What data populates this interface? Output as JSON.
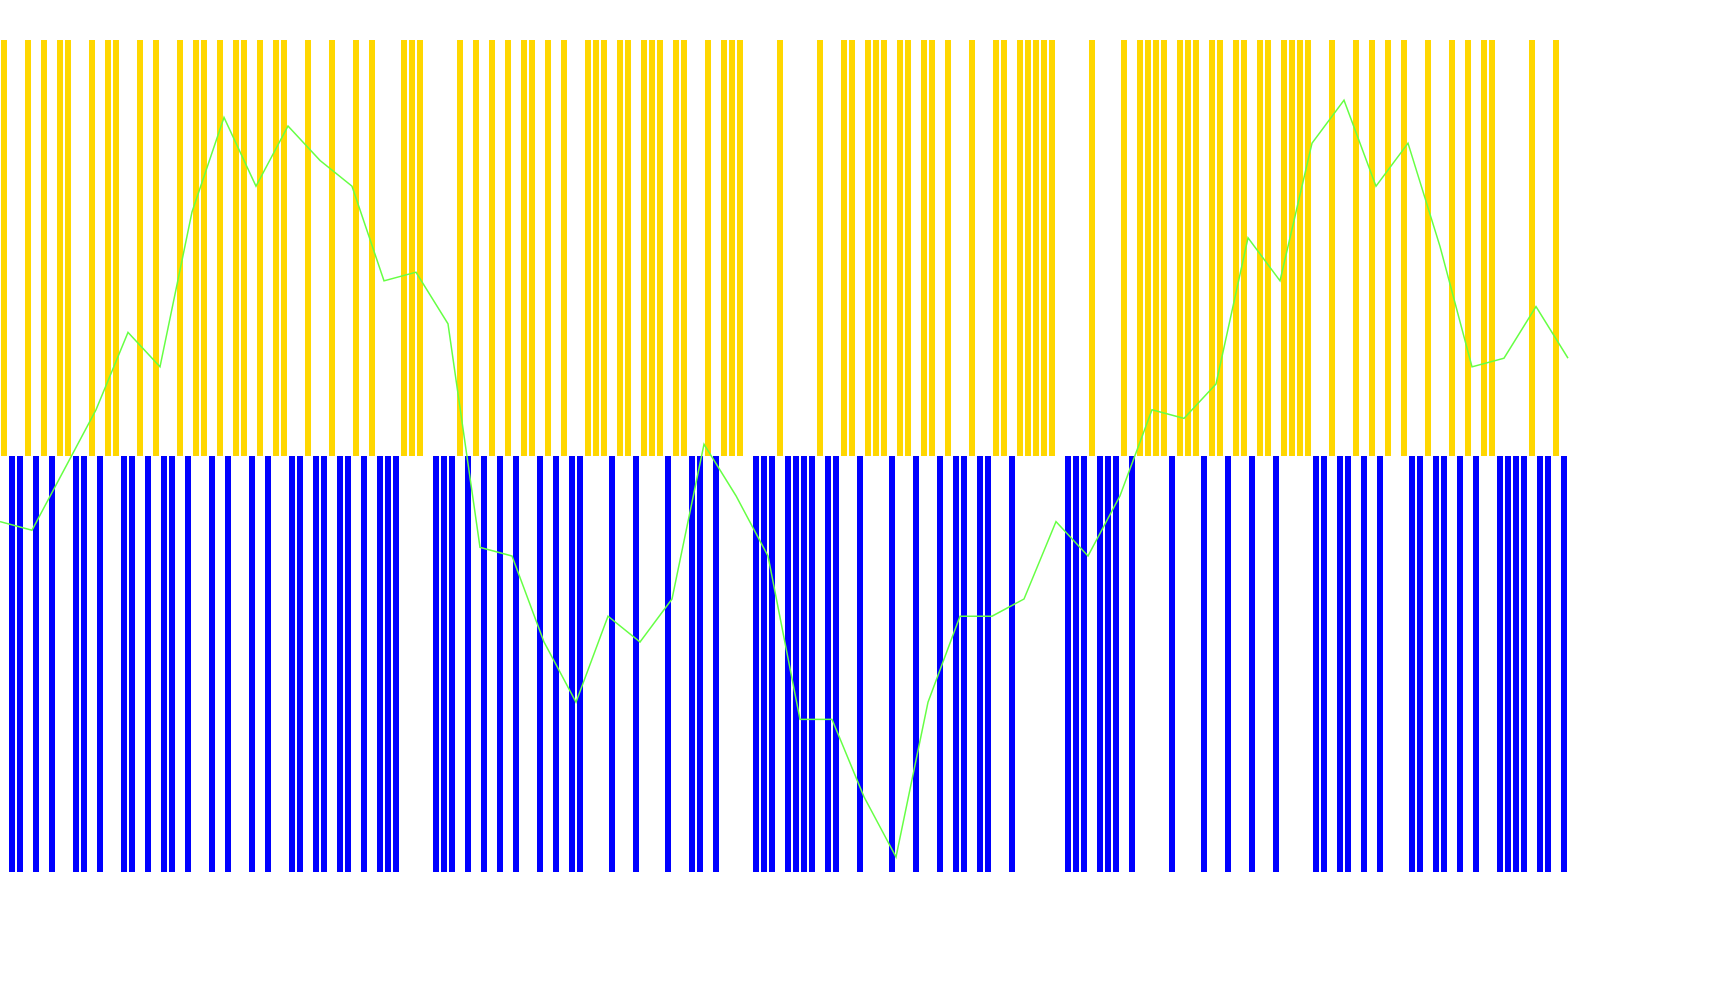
{
  "chart_data": {
    "type": "signal",
    "up_color": "#ffd700",
    "down_color": "#0000ff",
    "line_color": "#66ff44",
    "signals": [
      1,
      -1,
      -1,
      1,
      -1,
      1,
      -1,
      1,
      1,
      -1,
      -1,
      1,
      -1,
      1,
      1,
      -1,
      -1,
      1,
      -1,
      1,
      -1,
      -1,
      1,
      -1,
      1,
      1,
      -1,
      1,
      -1,
      1,
      1,
      -1,
      1,
      -1,
      1,
      1,
      -1,
      -1,
      1,
      -1,
      -1,
      1,
      -1,
      -1,
      1,
      -1,
      1,
      -1,
      -1,
      -1,
      1,
      1,
      1,
      0,
      -1,
      -1,
      -1,
      1,
      -1,
      1,
      -1,
      1,
      -1,
      1,
      -1,
      1,
      1,
      -1,
      1,
      -1,
      1,
      -1,
      -1,
      1,
      1,
      1,
      -1,
      1,
      1,
      -1,
      1,
      1,
      1,
      -1,
      1,
      1,
      -1,
      -1,
      1,
      -1,
      1,
      1,
      1,
      0,
      -1,
      -1,
      -1,
      1,
      -1,
      -1,
      -1,
      -1,
      1,
      -1,
      -1,
      1,
      1,
      -1,
      1,
      1,
      1,
      -1,
      1,
      1,
      -1,
      1,
      1,
      -1,
      1,
      -1,
      -1,
      1,
      -1,
      -1,
      1,
      1,
      -1,
      1,
      1,
      1,
      1,
      1,
      0,
      -1,
      -1,
      -1,
      1,
      -1,
      -1,
      -1,
      1,
      -1,
      1,
      1,
      1,
      1,
      -1,
      1,
      1,
      1,
      -1,
      1,
      1,
      -1,
      1,
      1,
      -1,
      1,
      1,
      -1,
      1,
      1,
      1,
      1,
      -1,
      -1,
      1,
      -1,
      -1,
      1,
      -1,
      1,
      -1,
      1,
      0,
      1,
      -1,
      -1,
      1,
      -1,
      -1,
      1,
      -1,
      1,
      -1,
      1,
      1,
      -1,
      -1,
      -1,
      -1,
      1,
      -1,
      -1,
      1,
      -1
    ],
    "line": [
      44,
      43,
      50,
      57,
      66,
      62,
      80,
      91,
      83,
      90,
      86,
      83,
      72,
      73,
      67,
      41,
      40,
      30,
      23,
      33,
      30,
      35,
      53,
      47,
      40,
      21,
      21,
      12,
      5,
      23,
      33,
      33,
      35,
      44,
      40,
      47,
      57,
      56,
      60,
      77,
      72,
      88,
      93,
      83,
      88,
      76,
      62,
      63,
      69,
      63
    ],
    "ylim": [
      0,
      100
    ]
  }
}
